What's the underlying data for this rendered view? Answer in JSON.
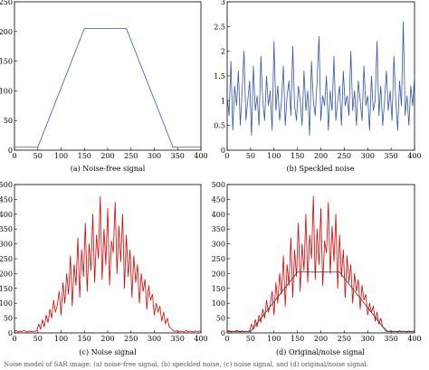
{
  "figure": {
    "footer_text": "Noise model of SAR image: (a) noise-free signal, (b) speckled noise, (c) noise signal, and (d) original/noise signal."
  },
  "chart_data": [
    {
      "type": "line",
      "caption": "(a)  Noise-free signal",
      "xlim": [
        0,
        400
      ],
      "ylim": [
        0,
        250
      ],
      "xticks": [
        0,
        50,
        100,
        150,
        200,
        250,
        300,
        350,
        400
      ],
      "yticks": [
        0,
        50,
        100,
        150,
        200,
        250
      ],
      "grid": false,
      "series": [
        {
          "color": "#3355aa",
          "x": [
            0,
            50,
            150,
            240,
            340,
            400
          ],
          "y": [
            5,
            5,
            205,
            205,
            5,
            5
          ]
        }
      ]
    },
    {
      "type": "line",
      "caption": "(b)  Speckled noise",
      "xlim": [
        0,
        400
      ],
      "ylim": [
        0,
        3
      ],
      "xticks": [
        0,
        50,
        100,
        150,
        200,
        250,
        300,
        350,
        400
      ],
      "yticks": [
        0,
        0.5,
        1,
        1.5,
        2,
        2.5,
        3
      ],
      "grid": false,
      "series": [
        {
          "color": "#3355aa",
          "x_start": 0,
          "x_step": 4,
          "y": [
            1.1,
            0.7,
            1.8,
            0.4,
            1.3,
            0.9,
            1.6,
            0.5,
            1.2,
            2.0,
            0.6,
            1.0,
            1.4,
            0.3,
            1.7,
            0.8,
            1.1,
            0.5,
            1.9,
            1.0,
            0.6,
            1.5,
            0.9,
            1.2,
            0.4,
            2.2,
            0.8,
            1.3,
            0.6,
            1.0,
            1.7,
            0.5,
            1.1,
            1.4,
            0.7,
            2.1,
            0.9,
            0.6,
            1.3,
            1.0,
            0.5,
            1.6,
            0.8,
            1.2,
            0.3,
            1.8,
            1.0,
            0.7,
            1.4,
            2.3,
            0.6,
            1.1,
            0.9,
            1.5,
            0.4,
            1.2,
            0.8,
            1.9,
            0.6,
            1.0,
            1.3,
            0.5,
            1.6,
            0.9,
            1.1,
            0.7,
            2.0,
            0.8,
            1.2,
            0.5,
            1.4,
            1.0,
            0.6,
            1.7,
            0.9,
            1.1,
            0.4,
            1.5,
            0.8,
            1.0,
            2.2,
            0.7,
            1.3,
            0.5,
            1.0,
            1.6,
            0.8,
            1.2,
            0.6,
            1.9,
            1.0,
            0.4,
            1.4,
            0.9,
            2.6,
            0.7,
            1.1,
            0.5,
            1.3,
            0.9,
            1.5
          ]
        }
      ]
    },
    {
      "type": "line",
      "caption": "(c)  Noise signal",
      "xlim": [
        0,
        400
      ],
      "ylim": [
        0,
        500
      ],
      "xticks": [
        0,
        50,
        100,
        150,
        200,
        250,
        300,
        350,
        400
      ],
      "yticks": [
        0,
        50,
        100,
        150,
        200,
        250,
        300,
        350,
        400,
        450,
        500
      ],
      "grid": false,
      "series": [
        {
          "color": "#dd0000",
          "x_start": 0,
          "x_step": 4,
          "y": [
            5,
            8,
            3,
            6,
            4,
            9,
            5,
            3,
            7,
            4,
            6,
            5,
            8,
            30,
            12,
            45,
            20,
            60,
            35,
            80,
            50,
            110,
            70,
            95,
            140,
            60,
            170,
            100,
            200,
            130,
            260,
            90,
            230,
            160,
            320,
            120,
            280,
            190,
            370,
            140,
            300,
            210,
            400,
            170,
            330,
            250,
            460,
            180,
            350,
            230,
            420,
            160,
            310,
            270,
            440,
            200,
            360,
            240,
            400,
            150,
            330,
            190,
            280,
            120,
            260,
            170,
            230,
            100,
            200,
            140,
            180,
            80,
            160,
            110,
            130,
            60,
            100,
            70,
            90,
            40,
            70,
            30,
            50,
            20,
            15,
            8,
            5,
            7,
            4,
            6,
            5,
            3,
            8,
            4,
            6,
            5,
            3,
            7,
            4,
            6,
            5
          ]
        }
      ]
    },
    {
      "type": "line",
      "caption": "(d)  Original/noise signal",
      "xlim": [
        0,
        400
      ],
      "ylim": [
        0,
        500
      ],
      "xticks": [
        0,
        50,
        100,
        150,
        200,
        250,
        300,
        350,
        400
      ],
      "yticks": [
        0,
        50,
        100,
        150,
        200,
        250,
        300,
        350,
        400,
        450,
        500
      ],
      "grid": false,
      "series": [
        {
          "color": "#dd0000",
          "x_start": 0,
          "x_step": 4,
          "y": [
            5,
            8,
            3,
            6,
            4,
            9,
            5,
            3,
            7,
            4,
            6,
            5,
            8,
            30,
            12,
            45,
            20,
            60,
            35,
            80,
            50,
            110,
            70,
            95,
            140,
            60,
            170,
            100,
            200,
            130,
            260,
            90,
            230,
            160,
            320,
            120,
            280,
            190,
            370,
            140,
            300,
            210,
            400,
            170,
            330,
            250,
            460,
            180,
            350,
            230,
            420,
            160,
            310,
            270,
            440,
            200,
            360,
            240,
            400,
            150,
            330,
            190,
            280,
            120,
            260,
            170,
            230,
            100,
            200,
            140,
            180,
            80,
            160,
            110,
            130,
            60,
            100,
            70,
            90,
            40,
            70,
            30,
            50,
            20,
            15,
            8,
            5,
            7,
            4,
            6,
            5,
            3,
            8,
            4,
            6,
            5,
            3,
            7,
            4,
            6,
            5
          ]
        },
        {
          "color": "#333333",
          "x": [
            0,
            50,
            150,
            240,
            340,
            400
          ],
          "y": [
            5,
            5,
            205,
            205,
            5,
            5
          ]
        }
      ]
    }
  ]
}
